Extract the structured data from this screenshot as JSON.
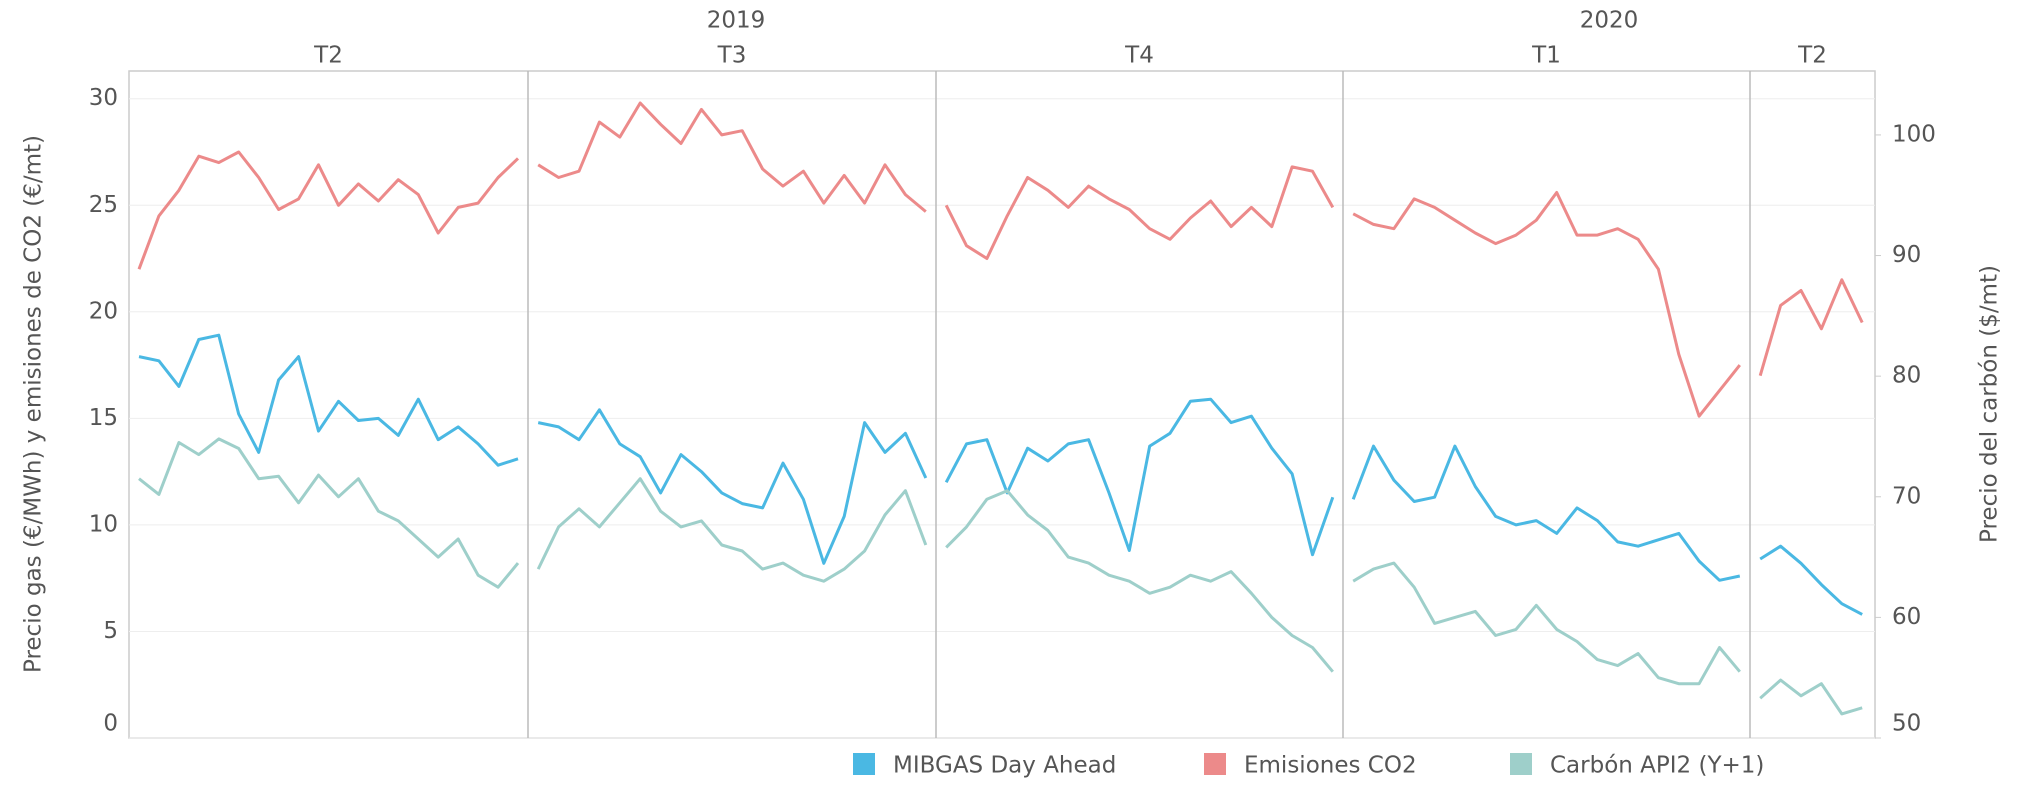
{
  "chart_data": {
    "type": "line",
    "years": [
      "2019",
      "2020"
    ],
    "quarters": [
      [
        "T2",
        "T3",
        "T4"
      ],
      [
        "T1",
        "T2"
      ]
    ],
    "ylabel": "Precio gas (€/MWh) y emisiones de CO2 (€/mt)",
    "y2label": "Precio del carbón ($/mt)",
    "ylim": [
      0,
      31.3
    ],
    "yticks": [
      0,
      5,
      10,
      15,
      20,
      25,
      30
    ],
    "y2lim": [
      50,
      105.3
    ],
    "y2ticks": [
      50,
      60,
      70,
      80,
      90,
      100
    ],
    "grid": true,
    "legend": "bottom",
    "series": [
      {
        "name": "MIBGAS Day Ahead",
        "color": "#4ab8e3",
        "values": [
          17.9,
          17.7,
          16.5,
          18.7,
          18.9,
          15.2,
          13.4,
          16.8,
          17.9,
          14.4,
          15.8,
          14.9,
          15.0,
          14.2,
          15.9,
          14.0,
          14.6,
          13.8,
          12.8,
          13.1,
          null,
          14.8,
          14.6,
          14.0,
          15.4,
          13.8,
          13.2,
          11.5,
          13.3,
          12.5,
          11.5,
          11.0,
          10.8,
          12.9,
          11.2,
          8.2,
          10.4,
          14.8,
          13.4,
          14.3,
          12.2,
          null,
          12.0,
          13.8,
          14.0,
          11.5,
          13.6,
          13.0,
          13.8,
          14.0,
          11.5,
          8.8,
          13.7,
          14.3,
          15.8,
          15.9,
          14.8,
          15.1,
          13.6,
          12.4,
          8.6,
          11.3,
          null,
          11.2,
          13.7,
          12.1,
          11.1,
          11.3,
          13.7,
          11.8,
          10.4,
          10.0,
          10.2,
          9.6,
          10.8,
          10.2,
          9.2,
          9.0,
          9.3,
          9.6,
          8.3,
          7.4,
          7.6,
          null,
          8.4,
          9.0,
          8.2,
          7.2,
          6.3,
          5.8
        ]
      },
      {
        "name": "Emisiones CO2",
        "color": "#ec8a8a",
        "values": [
          22.0,
          24.5,
          25.7,
          27.3,
          27.0,
          27.5,
          26.3,
          24.8,
          25.3,
          26.9,
          25.0,
          26.0,
          25.2,
          26.2,
          25.5,
          23.7,
          24.9,
          25.1,
          26.3,
          27.2,
          null,
          26.9,
          26.3,
          26.6,
          28.9,
          28.2,
          29.8,
          28.8,
          27.9,
          29.5,
          28.3,
          28.5,
          26.7,
          25.9,
          26.6,
          25.1,
          26.4,
          25.1,
          26.9,
          25.5,
          24.7,
          null,
          25.0,
          23.1,
          22.5,
          24.5,
          26.3,
          25.7,
          24.9,
          25.9,
          25.3,
          24.8,
          23.9,
          23.4,
          24.4,
          25.2,
          24.0,
          24.9,
          24.0,
          26.8,
          26.6,
          24.9,
          null,
          24.6,
          24.1,
          23.9,
          25.3,
          24.9,
          24.3,
          23.7,
          23.2,
          23.6,
          24.3,
          25.6,
          23.6,
          23.6,
          23.9,
          23.4,
          22.0,
          18.0,
          15.1,
          16.3,
          17.5,
          null,
          17.0,
          20.3,
          21.0,
          19.2,
          21.5,
          19.5
        ]
      },
      {
        "name": "Carbón API2 (Y+1)",
        "color": "#9ecfca",
        "axis": "y2",
        "values": [
          71.5,
          70.2,
          74.5,
          73.5,
          74.8,
          74.0,
          71.5,
          71.7,
          69.5,
          71.8,
          70.0,
          71.5,
          68.8,
          68.0,
          66.5,
          65.0,
          66.5,
          63.5,
          62.5,
          64.5,
          null,
          64.0,
          67.5,
          69.0,
          67.5,
          69.5,
          71.5,
          68.8,
          67.5,
          68.0,
          66.0,
          65.5,
          64.0,
          64.5,
          63.5,
          63.0,
          64.0,
          65.5,
          68.5,
          70.5,
          66.0,
          null,
          65.8,
          67.5,
          69.8,
          70.5,
          68.5,
          67.2,
          65.0,
          64.5,
          63.5,
          63.0,
          62.0,
          62.5,
          63.5,
          63.0,
          63.8,
          62.0,
          60.0,
          58.5,
          57.5,
          55.5,
          null,
          63.0,
          64.0,
          64.5,
          62.5,
          59.5,
          60.0,
          60.5,
          58.5,
          59.0,
          61.0,
          59.0,
          58.0,
          56.5,
          56.0,
          57.0,
          55.0,
          54.5,
          54.5,
          57.5,
          55.5,
          null,
          53.3,
          54.8,
          53.5,
          54.5,
          52.0,
          52.5
        ]
      }
    ]
  }
}
